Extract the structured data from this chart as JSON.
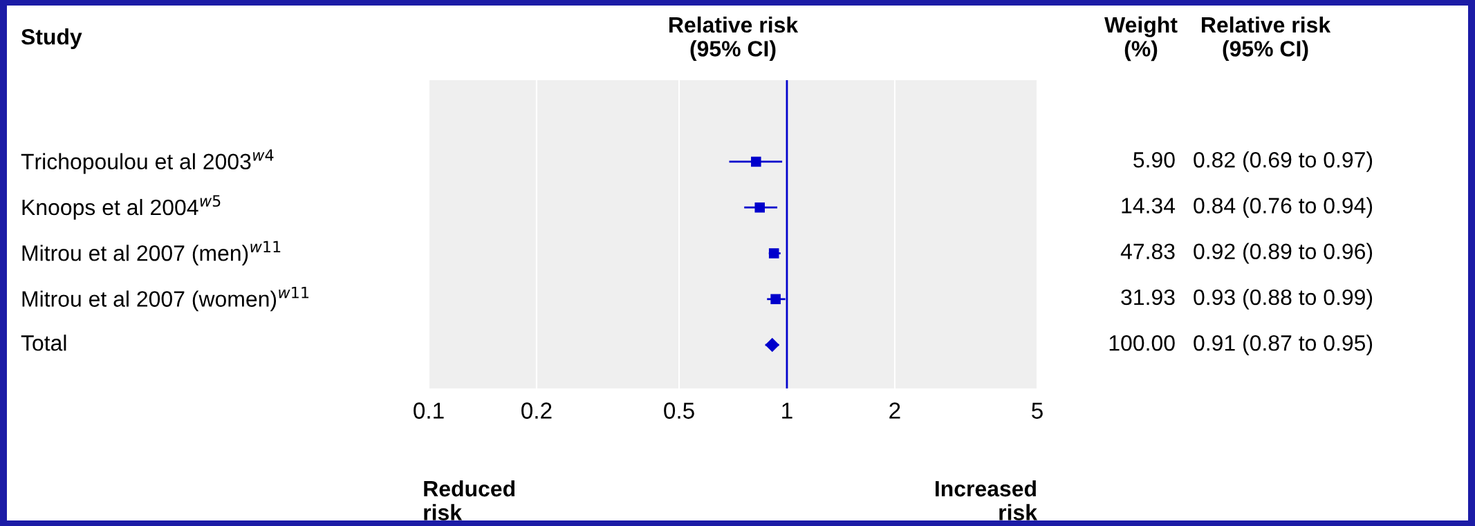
{
  "chart_data": {
    "type": "scatter",
    "orientation": "horizontal",
    "ylabel": "Study",
    "xlabel": "Relative risk\n(95% CI)",
    "categories": [
      "Trichopoulou et al 2003$^{w4}$",
      "Knoops et al 2004$^{w5}$",
      "Mitrou et al 2007 (men)$^{w11}$",
      "Mitrou et al 2007 (women)$^{w11}$",
      "Total"
    ],
    "series": [
      {
        "marker": "square",
        "color": "#0000cc",
        "values": [
          0.82,
          0.84,
          0.92,
          0.93,
          null
        ],
        "errors": [
          [
            0.69,
            0.97
          ],
          [
            0.76,
            0.94
          ],
          [
            0.89,
            0.96
          ],
          [
            0.88,
            0.99
          ],
          null
        ],
        "value_labels": [
          "0.82 (0.69 to 0.97)",
          "0.84 (0.76 to 0.94)",
          "0.92 (0.89 to 0.96)",
          "0.93 (0.88 to 0.99)",
          null
        ]
      },
      {
        "marker": "diamond",
        "color": "#0000cc",
        "values": [
          null,
          null,
          null,
          null,
          0.91
        ],
        "errors": [
          null,
          null,
          null,
          null,
          [
            0.87,
            0.95
          ]
        ]
      }
    ],
    "log": "x",
    "xlim": [
      0.1,
      5
    ],
    "xticks": [
      0.1,
      0.2,
      0.5,
      1,
      2,
      5
    ],
    "grid": "x",
    "ref_lines": [
      {
        "axis": "x",
        "value": 1,
        "color": "#0000cc"
      }
    ],
    "annotations": [
      "Weight\n(%)",
      "Relative risk\n(95% CI)",
      "Reduced\nrisk",
      "Increased\nrisk",
      "5.90",
      "14.34",
      "47.83",
      "31.93",
      "100.00",
      "0.91 (0.87 to 0.95)"
    ]
  }
}
